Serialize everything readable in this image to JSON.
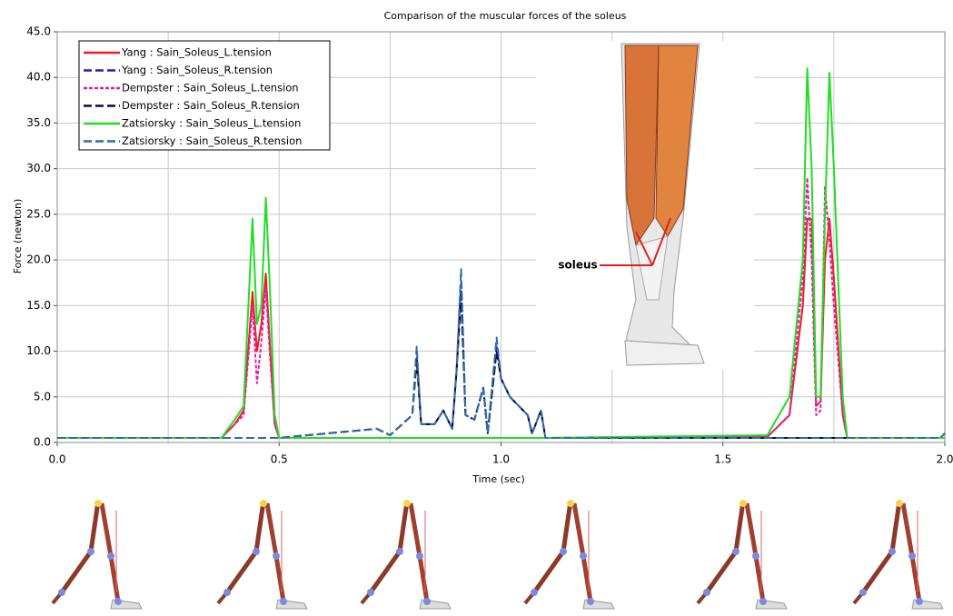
{
  "chart_data": {
    "type": "line",
    "title": "Comparison of the muscular forces of the soleus",
    "x_label": "Time (sec)",
    "y_label": "Force (newton)",
    "annotation": "soleus",
    "xlim": [
      0,
      2
    ],
    "ylim": [
      0,
      45
    ],
    "xticks": [
      {
        "value": 0,
        "label": "0.0"
      },
      {
        "value": 0.5,
        "label": "0.5"
      },
      {
        "value": 1,
        "label": "1.0"
      },
      {
        "value": 1.5,
        "label": "1.5"
      },
      {
        "value": 2,
        "label": "2.0"
      }
    ],
    "xgrid": [
      0,
      0.25,
      0.5,
      0.75,
      1,
      1.25,
      1.5,
      1.75,
      2
    ],
    "yticks": [
      {
        "value": 0,
        "label": "0.0"
      },
      {
        "value": 5,
        "label": "5.0"
      },
      {
        "value": 10,
        "label": "10.0"
      },
      {
        "value": 15,
        "label": "15.0"
      },
      {
        "value": 20,
        "label": "20.0"
      },
      {
        "value": 25,
        "label": "25.0"
      },
      {
        "value": 30,
        "label": "30.0"
      },
      {
        "value": 35,
        "label": "35.0"
      },
      {
        "value": 40,
        "label": "40.0"
      },
      {
        "value": 45,
        "label": "45.0"
      }
    ],
    "grid": true,
    "legend": "top-left",
    "x": [
      0,
      0.37,
      0.4,
      0.42,
      0.44,
      0.45,
      0.46,
      0.47,
      0.48,
      0.49,
      0.5,
      0.72,
      0.75,
      0.8,
      0.81,
      0.82,
      0.85,
      0.87,
      0.89,
      0.9,
      0.91,
      0.92,
      0.94,
      0.96,
      0.97,
      0.99,
      1.0,
      1.02,
      1.04,
      1.06,
      1.07,
      1.09,
      1.1,
      1.6,
      1.65,
      1.68,
      1.69,
      1.7,
      1.71,
      1.72,
      1.73,
      1.74,
      1.75,
      1.77,
      1.78,
      1.99,
      2.0
    ],
    "series": [
      {
        "name": "Yang : Sain_Soleus_L.tension",
        "color": "#ee1c25",
        "style": "solid",
        "values": [
          0.5,
          0.5,
          2,
          3.5,
          16.5,
          10,
          13,
          18.5,
          10,
          2,
          0.5,
          0.5,
          0.5,
          0.5,
          0.5,
          0.5,
          0.5,
          0.5,
          0.5,
          0.5,
          0.5,
          0.5,
          0.5,
          0.5,
          0.5,
          0.5,
          0.5,
          0.5,
          0.5,
          0.5,
          0.5,
          0.5,
          0.5,
          0.6,
          3,
          15,
          24.5,
          24.5,
          4,
          4.5,
          20,
          24.5,
          18,
          3,
          0.5,
          0.5,
          0.5
        ]
      },
      {
        "name": "Yang : Sain_Soleus_R.tension",
        "color": "#1f1fc8",
        "style": "dashed",
        "values": [
          0.5,
          0.5,
          0.5,
          0.5,
          0.5,
          0.5,
          0.5,
          0.5,
          0.5,
          0.5,
          0.5,
          1.5,
          0.8,
          3,
          9.5,
          2,
          2,
          3.5,
          1.5,
          8,
          17.5,
          3,
          2.5,
          6,
          1,
          10.5,
          7,
          5,
          4,
          3,
          1,
          3.5,
          0.5,
          0.5,
          0.5,
          0.5,
          0.5,
          0.5,
          0.5,
          0.5,
          0.5,
          0.5,
          0.5,
          0.5,
          0.5,
          0.5,
          1
        ]
      },
      {
        "name": "Dempster : Sain_Soleus_L.tension",
        "color": "#e020a8",
        "style": "dotted",
        "values": [
          0.5,
          0.5,
          2,
          3,
          15,
          6.5,
          11,
          17,
          9,
          2,
          0.5,
          0.5,
          0.5,
          0.5,
          0.5,
          0.5,
          0.5,
          0.5,
          0.5,
          0.5,
          0.5,
          0.5,
          0.5,
          0.5,
          0.5,
          0.5,
          0.5,
          0.5,
          0.5,
          0.5,
          0.5,
          0.5,
          0.5,
          0.6,
          3,
          18,
          29,
          20,
          3,
          3.5,
          28,
          22,
          15,
          3,
          0.5,
          0.5,
          0.5
        ]
      },
      {
        "name": "Dempster : Sain_Soleus_R.tension",
        "color": "#0a0a40",
        "style": "dashed",
        "values": [
          0.5,
          0.5,
          0.5,
          0.5,
          0.5,
          0.5,
          0.5,
          0.5,
          0.5,
          0.5,
          0.5,
          1.5,
          0.8,
          3,
          9,
          2,
          2,
          3.5,
          1.5,
          8,
          16,
          3,
          2.5,
          6,
          1,
          10,
          7,
          5,
          4,
          3,
          1,
          3.5,
          0.5,
          0.5,
          0.5,
          0.5,
          0.5,
          0.5,
          0.5,
          0.5,
          0.5,
          0.5,
          0.5,
          0.5,
          0.5,
          0.5,
          1
        ]
      },
      {
        "name": "Zatsiorsky : Sain_Soleus_L.tension",
        "color": "#22dd22",
        "style": "solid",
        "values": [
          0.5,
          0.5,
          2.5,
          4,
          24.5,
          13,
          15,
          26.8,
          16,
          3,
          0.5,
          0.5,
          0.5,
          0.5,
          0.5,
          0.5,
          0.5,
          0.5,
          0.5,
          0.5,
          0.5,
          0.5,
          0.5,
          0.5,
          0.5,
          0.5,
          0.5,
          0.5,
          0.5,
          0.5,
          0.5,
          0.5,
          0.5,
          0.8,
          5,
          20,
          41,
          30,
          5,
          5,
          25,
          40.5,
          30,
          5,
          0.5,
          0.5,
          0.5
        ]
      },
      {
        "name": "Zatsiorsky : Sain_Soleus_R.tension",
        "color": "#2f6ca0",
        "style": "dashed",
        "values": [
          0.5,
          0.5,
          0.5,
          0.5,
          0.5,
          0.5,
          0.5,
          0.5,
          0.5,
          0.5,
          0.5,
          1.5,
          0.8,
          3,
          10.5,
          2,
          2,
          3.5,
          1.5,
          8,
          19,
          3,
          2.5,
          6,
          1,
          11.5,
          7,
          5,
          4,
          3,
          1,
          3.5,
          0.5,
          0.5,
          0.5,
          0.5,
          0.5,
          0.5,
          0.5,
          0.5,
          0.5,
          0.5,
          0.5,
          0.5,
          0.5,
          0.5,
          1
        ]
      }
    ]
  }
}
